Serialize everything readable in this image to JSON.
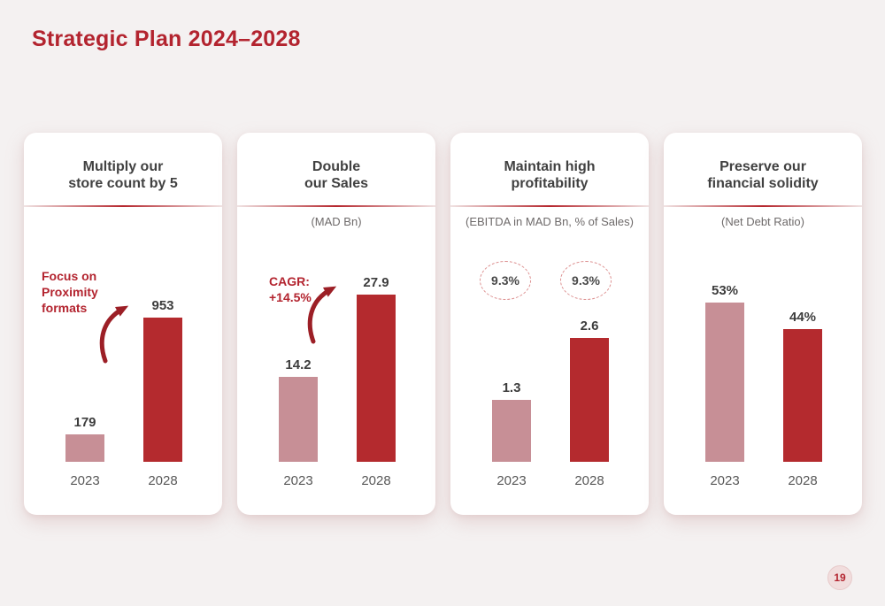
{
  "page": {
    "title": "Strategic Plan 2024–2028",
    "page_number": "19"
  },
  "colors": {
    "accent_red": "#b3242f",
    "bar_2023_pink": "#c78f96",
    "bar_2028_red": "#b42a2e",
    "arrow_red": "#9c1f26",
    "divider_red": "#b5262d",
    "background": "#f4f1f1"
  },
  "chart_data": [
    {
      "type": "bar",
      "title": "Multiply our\nstore count by 5",
      "subtitle": "",
      "categories": [
        "2023",
        "2028"
      ],
      "values": [
        179,
        953
      ],
      "value_labels": [
        "179",
        "953"
      ],
      "annotation": "Focus on\nProximity\nformats",
      "has_growth_arrow": true,
      "legend_position": "none",
      "grid": false
    },
    {
      "type": "bar",
      "title": "Double\nour Sales",
      "subtitle": "(MAD Bn)",
      "categories": [
        "2023",
        "2028"
      ],
      "values": [
        14.2,
        27.9
      ],
      "value_labels": [
        "14.2",
        "27.9"
      ],
      "annotation": "CAGR:\n+14.5%",
      "has_growth_arrow": true,
      "legend_position": "none",
      "grid": false
    },
    {
      "type": "bar",
      "title": "Maintain high\nprofitability",
      "subtitle": "(EBITDA in MAD Bn, % of Sales)",
      "categories": [
        "2023",
        "2028"
      ],
      "values": [
        1.3,
        2.6
      ],
      "value_labels": [
        "1.3",
        "2.6"
      ],
      "bubbles": [
        "9.3%",
        "9.3%"
      ],
      "legend_position": "none",
      "grid": false
    },
    {
      "type": "bar",
      "title": "Preserve our\nfinancial solidity",
      "subtitle": "(Net Debt Ratio)",
      "categories": [
        "2023",
        "2028"
      ],
      "values": [
        53,
        44
      ],
      "value_labels": [
        "53%",
        "44%"
      ],
      "legend_position": "none",
      "grid": false
    }
  ]
}
